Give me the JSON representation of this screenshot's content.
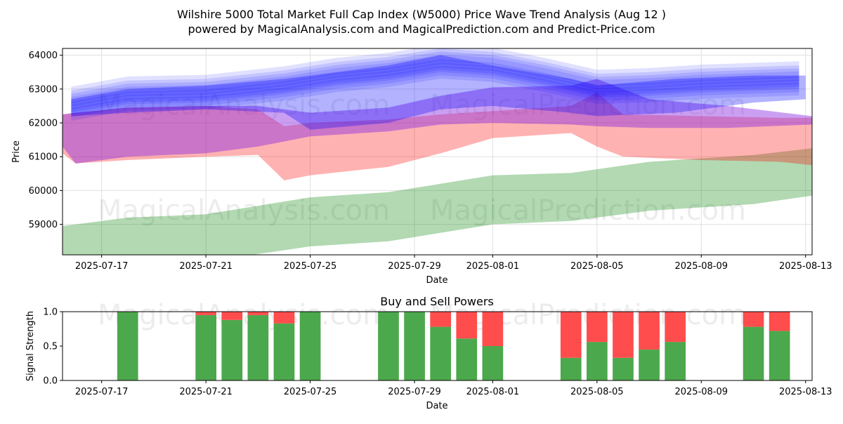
{
  "title_line1": "Wilshire 5000 Total Market Full Cap Index (W5000) Price Wave Trend Analysis (Aug 12 )",
  "title_line2": "powered by MagicalAnalysis.com and MagicalPrediction.com and Predict-Price.com",
  "watermarks": [
    "MagicalAnalysis.com",
    "MagicalPrediction.com"
  ],
  "colors": {
    "blue": "#0000ff",
    "red": "#ff0000",
    "purple": "#8a2be2",
    "green": "#008000",
    "buy": "#4ca84c",
    "sell": "#ff4d4d",
    "grid": "#e0e0e0"
  },
  "chart_data": [
    {
      "type": "area",
      "title": "",
      "xlabel": "Date",
      "ylabel": "Price",
      "x_range": [
        "2025-07-15T12:00",
        "2025-08-13T06:00"
      ],
      "ylim": [
        58100,
        64200
      ],
      "x_ticks": [
        "2025-07-17",
        "2025-07-21",
        "2025-07-25",
        "2025-07-29",
        "2025-08-01",
        "2025-08-05",
        "2025-08-09",
        "2025-08-13"
      ],
      "y_ticks": [
        59000,
        60000,
        61000,
        62000,
        63000,
        64000
      ],
      "grid": true,
      "bands": [
        {
          "name": "green-low",
          "color": "green",
          "opacity": 0.3,
          "x": [
            "2025-07-15T12:00",
            "2025-07-18",
            "2025-07-21",
            "2025-07-25",
            "2025-07-28",
            "2025-08-01",
            "2025-08-04",
            "2025-08-07",
            "2025-08-11",
            "2025-08-13T06:00"
          ],
          "upper": [
            58950,
            59200,
            59300,
            59800,
            59950,
            60450,
            60520,
            60850,
            61050,
            61250
          ],
          "lower": [
            58000,
            57800,
            57900,
            58350,
            58500,
            59000,
            59100,
            59400,
            59600,
            59850
          ]
        },
        {
          "name": "red-mid",
          "color": "red",
          "opacity": 0.3,
          "x": [
            "2025-07-15T12:00",
            "2025-07-16",
            "2025-07-18",
            "2025-07-21",
            "2025-07-23",
            "2025-07-24",
            "2025-07-25",
            "2025-07-28",
            "2025-07-30",
            "2025-08-01",
            "2025-08-04",
            "2025-08-05",
            "2025-08-06",
            "2025-08-09",
            "2025-08-12",
            "2025-08-13T06:00"
          ],
          "upper": [
            62250,
            62300,
            62450,
            62500,
            62400,
            61900,
            62000,
            62100,
            62250,
            62350,
            62500,
            62900,
            62250,
            62200,
            62150,
            62150
          ],
          "lower": [
            61100,
            60800,
            60900,
            61000,
            61050,
            60300,
            60450,
            60700,
            61100,
            61550,
            61700,
            61300,
            61000,
            60900,
            60850,
            60750
          ]
        },
        {
          "name": "purple-mid",
          "color": "purple",
          "opacity": 0.45,
          "x": [
            "2025-07-15T12:00",
            "2025-07-16",
            "2025-07-18",
            "2025-07-21",
            "2025-07-23",
            "2025-07-25",
            "2025-07-28",
            "2025-07-30",
            "2025-08-01",
            "2025-08-04",
            "2025-08-05",
            "2025-08-07",
            "2025-08-10",
            "2025-08-13T06:00"
          ],
          "upper": [
            62250,
            62300,
            62450,
            62500,
            62500,
            62300,
            62450,
            62800,
            63050,
            63100,
            63300,
            62700,
            62500,
            62200
          ],
          "lower": [
            61300,
            60800,
            61000,
            61100,
            61300,
            61600,
            61750,
            61950,
            62000,
            61950,
            61900,
            61850,
            61850,
            61950
          ]
        },
        {
          "name": "blue-wide",
          "color": "blue",
          "opacity": 0.3,
          "x": [
            "2025-07-15T20:00",
            "2025-07-18",
            "2025-07-21",
            "2025-07-24",
            "2025-07-25",
            "2025-07-28",
            "2025-07-30",
            "2025-08-01",
            "2025-08-04",
            "2025-08-05",
            "2025-08-08",
            "2025-08-11",
            "2025-08-13"
          ],
          "upper": [
            62700,
            63000,
            63100,
            63300,
            63400,
            63700,
            64000,
            63700,
            63300,
            63100,
            63300,
            63400,
            63400
          ],
          "lower": [
            62200,
            62300,
            62400,
            62300,
            61800,
            62000,
            62400,
            62500,
            62300,
            62200,
            62300,
            62600,
            62700
          ]
        }
      ],
      "wave_paths": {
        "x": [
          "2025-07-15T20:00",
          "2025-07-18",
          "2025-07-21",
          "2025-07-24",
          "2025-07-26",
          "2025-07-28",
          "2025-07-30",
          "2025-08-01",
          "2025-08-03",
          "2025-08-05",
          "2025-08-07",
          "2025-08-09",
          "2025-08-12T18:00"
        ],
        "center": [
          62500,
          62800,
          62850,
          63100,
          63350,
          63500,
          63750,
          63650,
          63350,
          63000,
          63050,
          63150,
          63250
        ],
        "offsets": [
          -250,
          -150,
          -60,
          0,
          80,
          170,
          260,
          380
        ],
        "width": 380,
        "opacity": 0.12
      }
    },
    {
      "type": "bar",
      "title": "Buy and Sell Powers",
      "xlabel": "Date",
      "ylabel": "Signal Strength",
      "ylim": [
        0,
        1
      ],
      "y_ticks": [
        0.0,
        0.5,
        1.0
      ],
      "y_tick_labels": [
        "0.0",
        "0.5",
        "1.0"
      ],
      "x_ticks": [
        "2025-07-17",
        "2025-07-21",
        "2025-07-25",
        "2025-07-29",
        "2025-08-01",
        "2025-08-05",
        "2025-08-09",
        "2025-08-13"
      ],
      "categories": [
        "2025-07-18",
        "2025-07-21",
        "2025-07-22",
        "2025-07-23",
        "2025-07-24",
        "2025-07-25",
        "2025-07-28",
        "2025-07-29",
        "2025-07-30",
        "2025-07-31",
        "2025-08-01",
        "2025-08-04",
        "2025-08-05",
        "2025-08-06",
        "2025-08-07",
        "2025-08-08",
        "2025-08-11",
        "2025-08-12"
      ],
      "series": [
        {
          "name": "Buy",
          "color": "buy",
          "values": [
            1.0,
            0.95,
            0.88,
            0.95,
            0.83,
            1.0,
            1.0,
            1.0,
            0.78,
            0.61,
            0.5,
            0.33,
            0.56,
            0.33,
            0.45,
            0.56,
            0.78,
            0.72
          ]
        },
        {
          "name": "Sell",
          "color": "sell",
          "values": [
            0.0,
            0.05,
            0.12,
            0.05,
            0.17,
            0.0,
            0.0,
            0.0,
            0.22,
            0.39,
            0.5,
            0.67,
            0.44,
            0.67,
            0.55,
            0.44,
            0.22,
            0.28
          ]
        }
      ]
    }
  ]
}
